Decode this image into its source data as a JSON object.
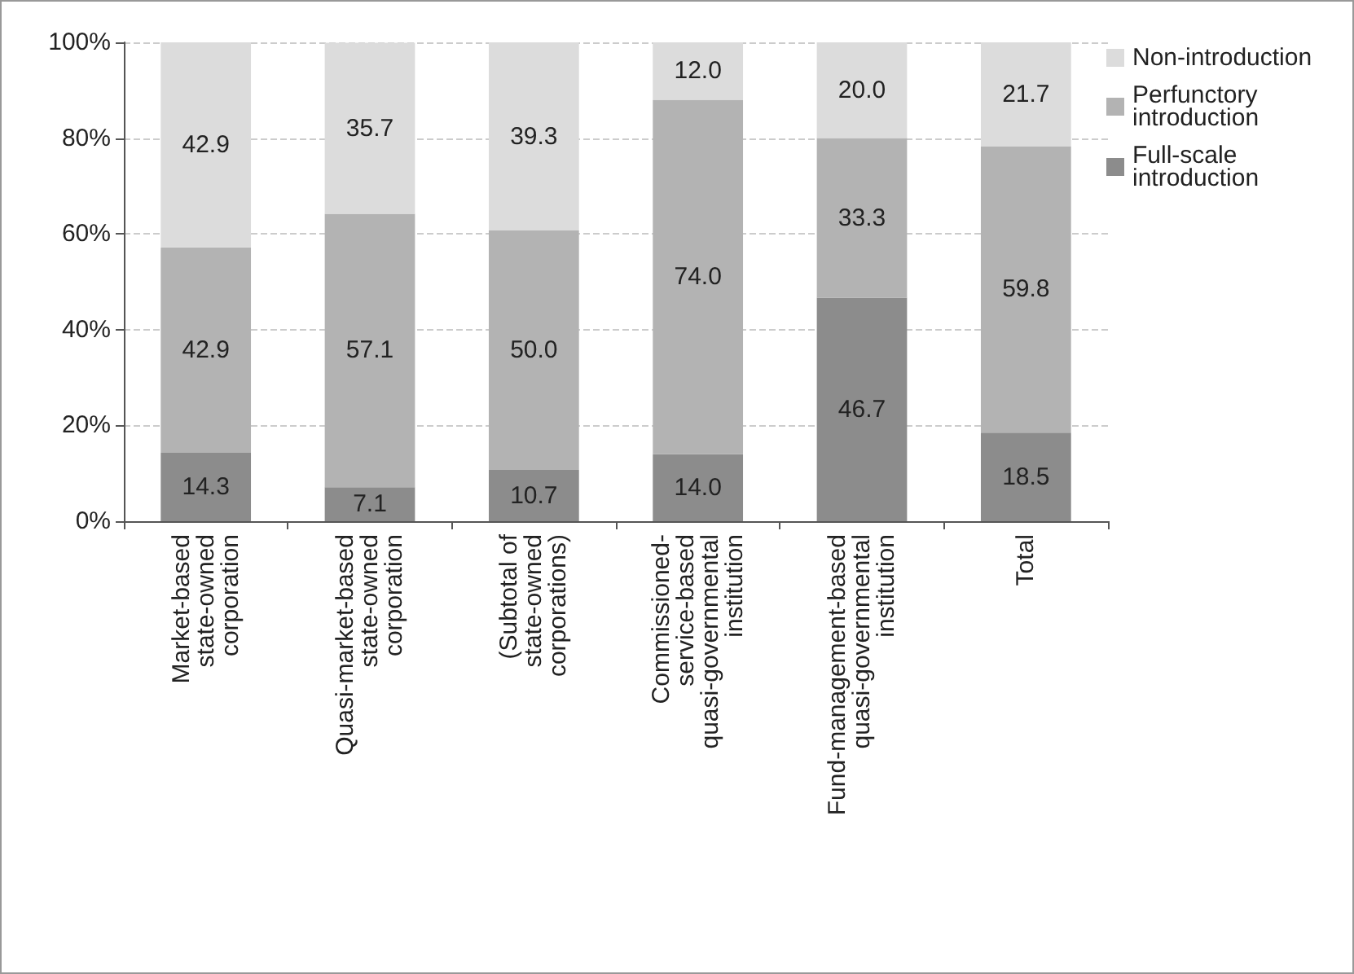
{
  "chart_data": {
    "type": "bar",
    "stacked": true,
    "categories": [
      "Market-based\nstate-owned\ncorporation",
      "Quasi-market-based\nstate-owned\ncorporation",
      "(Subtotal of\nstate-owned\ncorporations)",
      "Commissioned-\nservice-based\nquasi-governmental\ninstitution",
      "Fund-management-based\nquasi-governmental\ninstitution",
      "Total"
    ],
    "series": [
      {
        "name": "Full-scale introduction",
        "color": "#8c8c8c",
        "values": [
          14.3,
          7.1,
          10.7,
          14.0,
          46.7,
          18.5
        ],
        "value_labels": [
          "14.3",
          "7.1",
          "10.7",
          "14.0",
          "46.7",
          "18.5"
        ]
      },
      {
        "name": "Perfunctory introduction",
        "color": "#b3b3b3",
        "values": [
          42.9,
          57.1,
          50.0,
          74.0,
          33.3,
          59.8
        ],
        "value_labels": [
          "42.9",
          "57.1",
          "50.0",
          "74.0",
          "33.3",
          "59.8"
        ]
      },
      {
        "name": "Non-introduction",
        "color": "#dcdcdc",
        "values": [
          42.9,
          35.7,
          39.3,
          12.0,
          20.0,
          21.7
        ],
        "value_labels": [
          "42.9",
          "35.7",
          "39.3",
          "12.0",
          "20.0",
          "21.7"
        ]
      }
    ],
    "ylim": [
      0,
      100
    ],
    "yticks": [
      {
        "value": 0,
        "label": "0%"
      },
      {
        "value": 20,
        "label": "20%"
      },
      {
        "value": 40,
        "label": "40%"
      },
      {
        "value": 60,
        "label": "60%"
      },
      {
        "value": 80,
        "label": "80%"
      },
      {
        "value": 100,
        "label": "100%"
      }
    ],
    "grid": "y",
    "legend": "top right"
  }
}
